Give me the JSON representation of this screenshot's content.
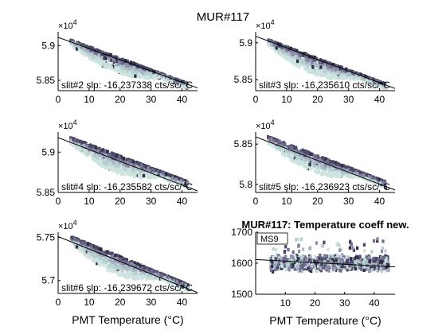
{
  "suptitle": "MUR#117",
  "xlabel": "PMT Temperature (°C)",
  "colors": {
    "palette": [
      "#2f2d44",
      "#4a4866",
      "#6c6a8c",
      "#8d8aa8",
      "#a9b8c6",
      "#b6d0d0",
      "#cde3e0"
    ],
    "fit_line": "#000000",
    "axes": "#000000"
  },
  "chart_data": [
    {
      "type": "scatter",
      "panel": "slit#2",
      "annotation": "slit#2 slp: -16.237338 cts/sc/°C",
      "xlim": [
        0,
        45
      ],
      "ylim": [
        58350,
        59200
      ],
      "xticks": [
        0,
        10,
        20,
        30,
        40
      ],
      "yticks": [
        58500,
        59000
      ],
      "yticklabels": [
        "5.85",
        "5.9"
      ],
      "exponent": "×10",
      "exponent_power": "4",
      "fit": {
        "x": [
          0,
          45
        ],
        "y": [
          59120,
          58390
        ]
      },
      "cloud": {
        "x_range": [
          4,
          42
        ],
        "y_at_x_start": 59050,
        "y_at_x_end": 58420,
        "spread": [
          70,
          220
        ]
      }
    },
    {
      "type": "scatter",
      "panel": "slit#3",
      "annotation": "slit#3 slp: -16.235610 cts/sc/°C",
      "xlim": [
        0,
        45
      ],
      "ylim": [
        58350,
        59150
      ],
      "xticks": [
        0,
        10,
        20,
        30,
        40
      ],
      "yticks": [
        58500,
        59000
      ],
      "yticklabels": [
        "5.85",
        "5.9"
      ],
      "exponent": "×10",
      "exponent_power": "4",
      "fit": {
        "x": [
          0,
          45
        ],
        "y": [
          59090,
          58380
        ]
      },
      "cloud": {
        "x_range": [
          4,
          42
        ],
        "y_at_x_start": 59010,
        "y_at_x_end": 58410,
        "spread": [
          70,
          230
        ]
      }
    },
    {
      "type": "scatter",
      "panel": "slit#4",
      "annotation": "slit#4 slp: -16.235582 cts/sc/°C",
      "xlim": [
        0,
        45
      ],
      "ylim": [
        58500,
        59250
      ],
      "xticks": [
        0,
        10,
        20,
        30,
        40
      ],
      "yticks": [
        58500,
        59000
      ],
      "yticklabels": [
        "5.85",
        "5.9"
      ],
      "exponent": "×10",
      "exponent_power": "4",
      "fit": {
        "x": [
          0,
          45
        ],
        "y": [
          59180,
          58520
        ]
      },
      "cloud": {
        "x_range": [
          4,
          42
        ],
        "y_at_x_start": 59150,
        "y_at_x_end": 58600,
        "spread": [
          70,
          220
        ]
      }
    },
    {
      "type": "scatter",
      "panel": "slit#5",
      "annotation": "slit#5 slp: -16.236923 cts/sc/°C",
      "xlim": [
        0,
        45
      ],
      "ylim": [
        57900,
        58650
      ],
      "xticks": [
        0,
        10,
        20,
        30,
        40
      ],
      "yticks": [
        58000,
        58500
      ],
      "yticklabels": [
        "5.8",
        "5.85"
      ],
      "exponent": "×10",
      "exponent_power": "4",
      "fit": {
        "x": [
          0,
          45
        ],
        "y": [
          58590,
          57930
        ]
      },
      "cloud": {
        "x_range": [
          4,
          42
        ],
        "y_at_x_start": 58560,
        "y_at_x_end": 58000,
        "spread": [
          70,
          220
        ]
      }
    },
    {
      "type": "scatter",
      "panel": "slit#6",
      "annotation": "slit#6 slp: -16.239672 cts/sc/°C",
      "xlim": [
        0,
        45
      ],
      "ylim": [
        56850,
        57560
      ],
      "xticks": [
        0,
        10,
        20,
        30,
        40
      ],
      "yticks": [
        57000,
        57500
      ],
      "yticklabels": [
        "5.7",
        "5.75"
      ],
      "exponent": "×10",
      "exponent_power": "4",
      "fit": {
        "x": [
          0,
          45
        ],
        "y": [
          57510,
          56860
        ]
      },
      "cloud": {
        "x_range": [
          4,
          42
        ],
        "y_at_x_start": 57480,
        "y_at_x_end": 56920,
        "spread": [
          70,
          220
        ]
      }
    },
    {
      "type": "scatter",
      "panel": "MS9",
      "title": "MUR#117: Temperature coeff new.",
      "legend": "MS9",
      "xlim": [
        0,
        47
      ],
      "ylim": [
        1500,
        1700
      ],
      "xticks": [
        10,
        20,
        30,
        40
      ],
      "yticks": [
        1500,
        1600,
        1700
      ],
      "yticklabels": [
        "1500",
        "1600",
        "1700"
      ],
      "fit": {
        "x": [
          0,
          47
        ],
        "y": [
          1612,
          1588
        ]
      },
      "cloud": {
        "x_range": [
          5,
          45
        ],
        "y_center": 1600,
        "y_halfwidth": 28
      }
    }
  ]
}
